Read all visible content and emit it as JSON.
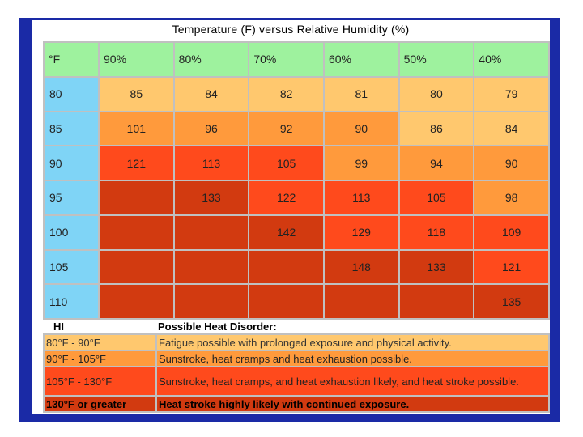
{
  "chart_data": {
    "type": "table",
    "title": "Temperature (F) versus Relative Humidity (%)",
    "corner_label": "°F",
    "humidity_headers": [
      "90%",
      "80%",
      "70%",
      "60%",
      "50%",
      "40%"
    ],
    "rows": [
      {
        "temp": "80",
        "values": [
          "85",
          "84",
          "82",
          "81",
          "80",
          "79"
        ]
      },
      {
        "temp": "85",
        "values": [
          "101",
          "96",
          "92",
          "90",
          "86",
          "84"
        ]
      },
      {
        "temp": "90",
        "values": [
          "121",
          "113",
          "105",
          "99",
          "94",
          "90"
        ]
      },
      {
        "temp": "95",
        "values": [
          "",
          "133",
          "122",
          "113",
          "105",
          "98"
        ]
      },
      {
        "temp": "100",
        "values": [
          "",
          "",
          "142",
          "129",
          "118",
          "109"
        ]
      },
      {
        "temp": "105",
        "values": [
          "",
          "",
          "",
          "148",
          "133",
          "121"
        ]
      },
      {
        "temp": "110",
        "values": [
          "",
          "",
          "",
          "",
          "",
          "135"
        ]
      }
    ],
    "level_colors": {
      "c80": "#ffc86e",
      "c85": "#ff9a3c",
      "c90": "#ff4a1c",
      "c95": "#d23a10"
    }
  },
  "legend": {
    "col1_header": "HI",
    "col2_header": "Possible Heat Disorder:",
    "rows": [
      {
        "range": "80°F - 90°F",
        "text": " Fatigue possible with prolonged exposure and physical activity."
      },
      {
        "range": "90°F - 105°F",
        "text": "Sunstroke, heat cramps and heat exhaustion possible."
      },
      {
        "range": "105°F - 130°F",
        "text": "Sunstroke, heat cramps, and heat exhaustion likely, and heat stroke possible."
      },
      {
        "range": "130°F or greater",
        "text": " Heat stroke highly likely with continued exposure."
      }
    ]
  }
}
